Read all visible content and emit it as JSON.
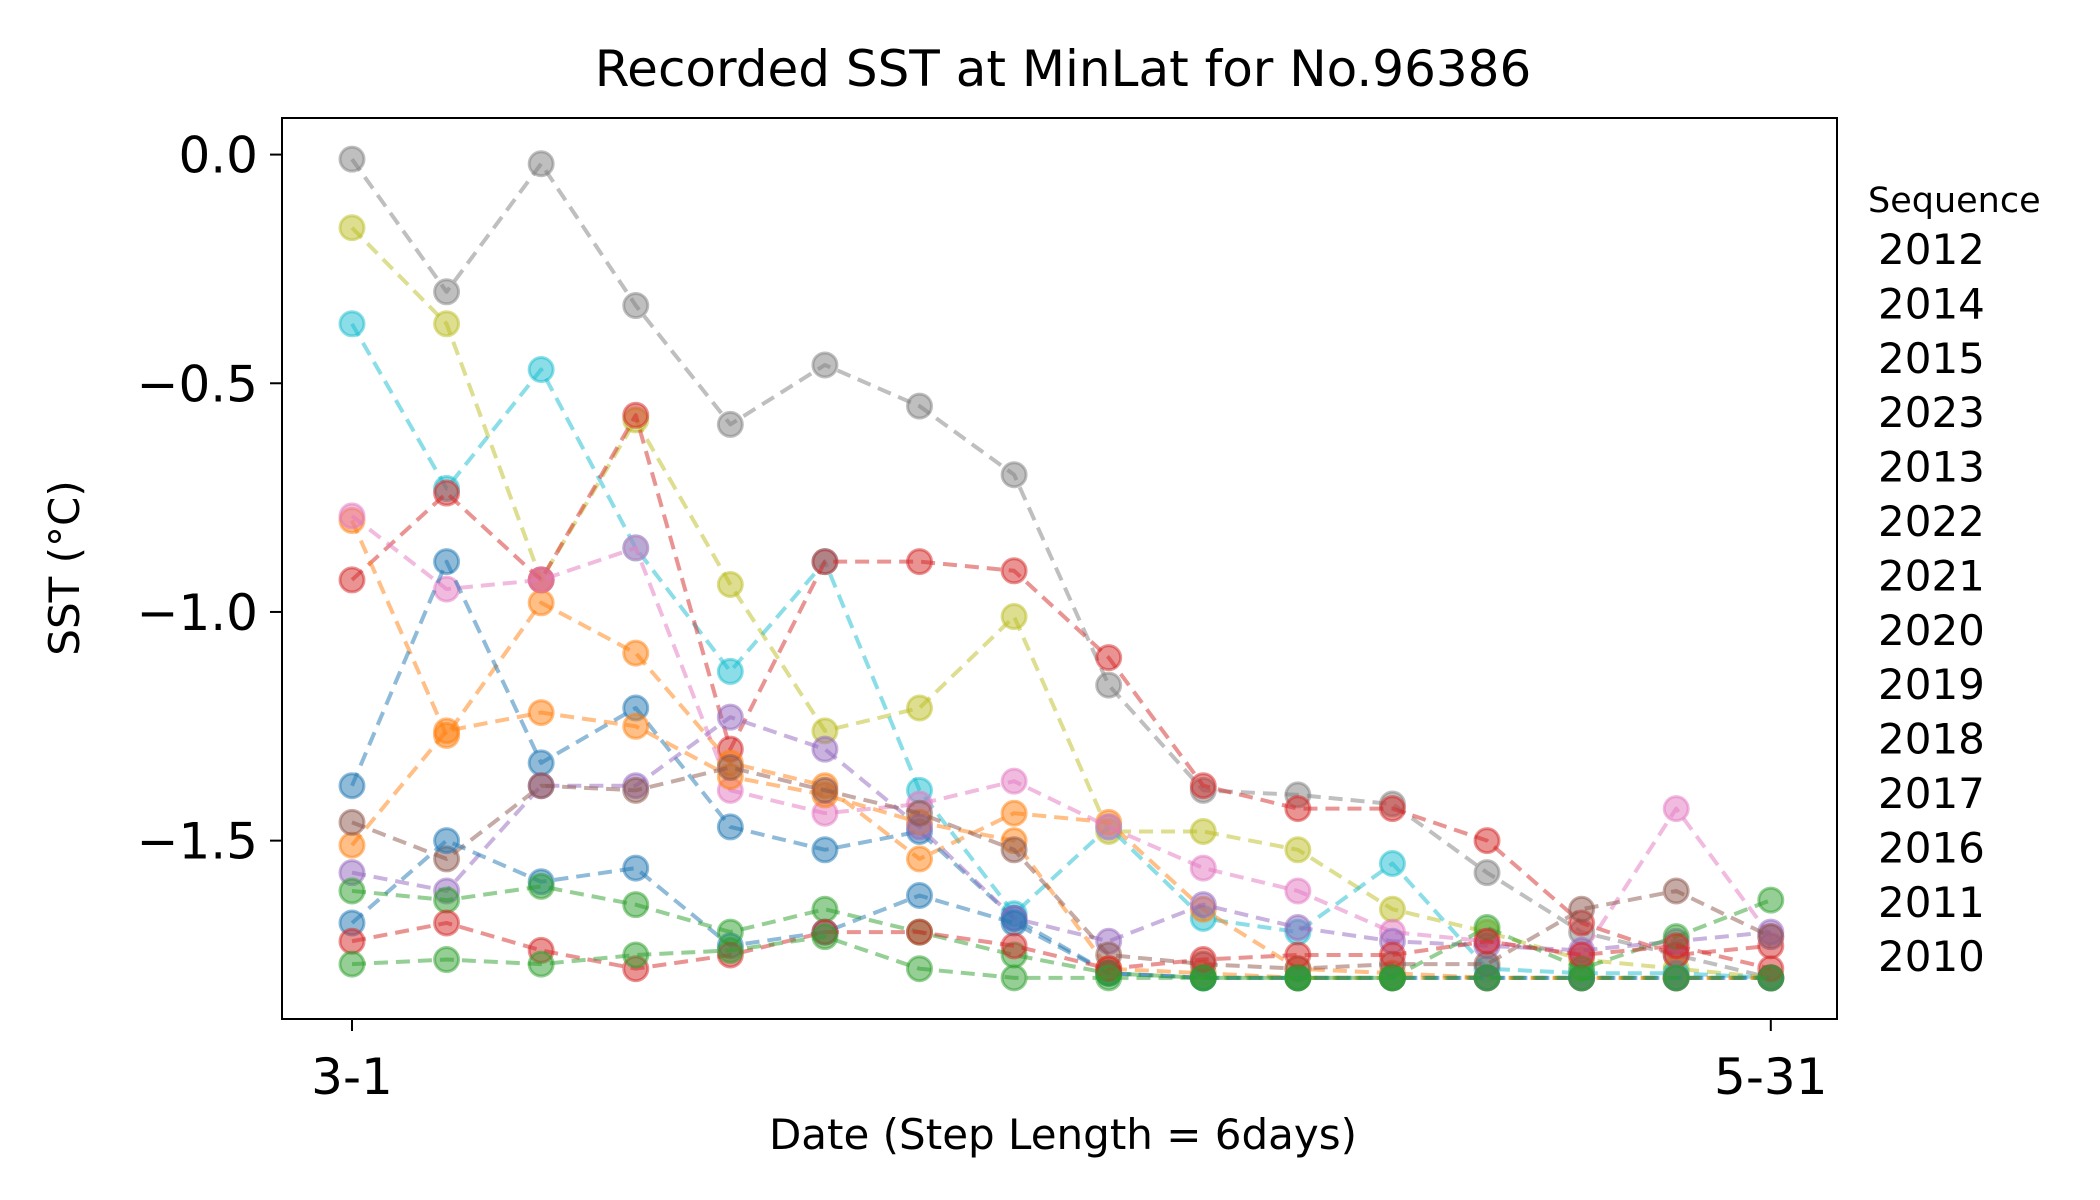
{
  "chart_data": {
    "type": "line",
    "title": "Recorded SST at MinLat for No.96386",
    "xlabel": "Date (Step Length = 6days)",
    "ylabel": "SST (°C)",
    "x_ticks": [
      {
        "x": 1,
        "label": "3-1"
      },
      {
        "x": 16,
        "label": "5-31"
      }
    ],
    "y_ticks": [
      {
        "y": 0.0,
        "label": "0.0"
      },
      {
        "y": -0.5,
        "label": "−0.5"
      },
      {
        "y": -1.0,
        "label": "−1.0"
      },
      {
        "y": -1.5,
        "label": "−1.5"
      }
    ],
    "xlim": [
      0.26,
      16.7
    ],
    "ylim": [
      -1.89,
      0.08
    ],
    "x": [
      1,
      2,
      3,
      4,
      5,
      6,
      7,
      8,
      9,
      10,
      11,
      12,
      13,
      14,
      15,
      16
    ],
    "legend": {
      "title": "Sequence",
      "placement": "right, outside plot",
      "entries": [
        "2012",
        "2014",
        "2015",
        "2023",
        "2013",
        "2022",
        "2021",
        "2020",
        "2019",
        "2018",
        "2017",
        "2016",
        "2011",
        "2010"
      ]
    },
    "line_style": "dashed",
    "marker": "circle",
    "grid": false,
    "series": [
      {
        "name": "2012",
        "color": "#7f7f7f",
        "values": [
          -0.01,
          -0.3,
          -0.02,
          -0.33,
          -0.59,
          -0.46,
          -0.55,
          -0.7,
          -1.16,
          -1.39,
          -1.4,
          -1.42,
          -1.57,
          -1.7,
          -1.75,
          -1.8
        ]
      },
      {
        "name": "2014",
        "color": "#bcbd22",
        "values": [
          -0.16,
          -0.37,
          -0.93,
          -0.58,
          -0.94,
          -1.26,
          -1.21,
          -1.01,
          -1.48,
          -1.48,
          -1.52,
          -1.65,
          -1.7,
          -1.76,
          -1.78,
          -1.8
        ]
      },
      {
        "name": "2015",
        "color": "#17becf",
        "values": [
          -0.37,
          -0.73,
          -0.47,
          -0.86,
          -1.13,
          -0.89,
          -1.39,
          -1.66,
          -1.47,
          -1.67,
          -1.7,
          -1.55,
          -1.78,
          -1.79,
          -1.79,
          -1.8
        ]
      },
      {
        "name": "2023",
        "color": "#d62728",
        "values": [
          -0.93,
          -0.74,
          -0.93,
          -0.57,
          -1.3,
          -0.89,
          -0.89,
          -0.91,
          -1.1,
          -1.38,
          -1.43,
          -1.43,
          -1.5,
          -1.68,
          -1.75,
          -1.73
        ]
      },
      {
        "name": "2013",
        "color": "#ff7f0e",
        "values": [
          -0.8,
          -1.27,
          -0.98,
          -1.09,
          -1.33,
          -1.38,
          -1.54,
          -1.44,
          -1.46,
          -1.65,
          -1.78,
          -1.79,
          -1.8,
          -1.8,
          -1.8,
          -1.8
        ]
      },
      {
        "name": "2022",
        "color": "#e377c2",
        "values": [
          -0.79,
          -0.95,
          -0.93,
          -0.86,
          -1.39,
          -1.44,
          -1.42,
          -1.37,
          -1.47,
          -1.56,
          -1.61,
          -1.7,
          -1.72,
          -1.75,
          -1.43,
          -1.71
        ]
      },
      {
        "name": "2021",
        "color": "#1f77b4",
        "values": [
          -1.38,
          -0.89,
          -1.33,
          -1.21,
          -1.47,
          -1.52,
          -1.48,
          -1.67,
          -1.79,
          -1.8,
          -1.8,
          -1.8,
          -1.8,
          -1.8,
          -1.8,
          -1.8
        ]
      },
      {
        "name": "2020",
        "color": "#ff7f0e",
        "values": [
          -1.51,
          -1.26,
          -1.22,
          -1.25,
          -1.36,
          -1.4,
          -1.46,
          -1.5,
          -1.78,
          -1.79,
          -1.8,
          -1.8,
          -1.8,
          -1.8,
          -1.8,
          -1.8
        ]
      },
      {
        "name": "2019",
        "color": "#9467bd",
        "values": [
          -1.57,
          -1.61,
          -1.38,
          -1.38,
          -1.23,
          -1.3,
          -1.47,
          -1.67,
          -1.72,
          -1.64,
          -1.69,
          -1.72,
          -1.73,
          -1.74,
          -1.72,
          -1.7
        ]
      },
      {
        "name": "2018",
        "color": "#8c564b",
        "values": [
          -1.46,
          -1.54,
          -1.38,
          -1.39,
          -1.34,
          -1.39,
          -1.44,
          -1.52,
          -1.75,
          -1.77,
          -1.78,
          -1.77,
          -1.77,
          -1.65,
          -1.61,
          -1.71
        ]
      },
      {
        "name": "2017",
        "color": "#1f77b4",
        "values": [
          -1.68,
          -1.5,
          -1.59,
          -1.56,
          -1.73,
          -1.7,
          -1.62,
          -1.68,
          -1.79,
          -1.8,
          -1.8,
          -1.8,
          -1.8,
          -1.8,
          -1.8,
          -1.8
        ]
      },
      {
        "name": "2016",
        "color": "#2ca02c",
        "values": [
          -1.61,
          -1.63,
          -1.6,
          -1.64,
          -1.7,
          -1.65,
          -1.7,
          -1.75,
          -1.79,
          -1.8,
          -1.8,
          -1.8,
          -1.69,
          -1.78,
          -1.71,
          -1.63
        ]
      },
      {
        "name": "2011",
        "color": "#d62728",
        "values": [
          -1.72,
          -1.68,
          -1.74,
          -1.78,
          -1.75,
          -1.7,
          -1.7,
          -1.73,
          -1.78,
          -1.76,
          -1.75,
          -1.75,
          -1.72,
          -1.75,
          -1.73,
          -1.78
        ]
      },
      {
        "name": "2010",
        "color": "#2ca02c",
        "values": [
          -1.77,
          -1.76,
          -1.77,
          -1.75,
          -1.74,
          -1.71,
          -1.78,
          -1.8,
          -1.8,
          -1.8,
          -1.8,
          -1.8,
          -1.8,
          -1.8,
          -1.8,
          -1.8
        ]
      }
    ]
  }
}
